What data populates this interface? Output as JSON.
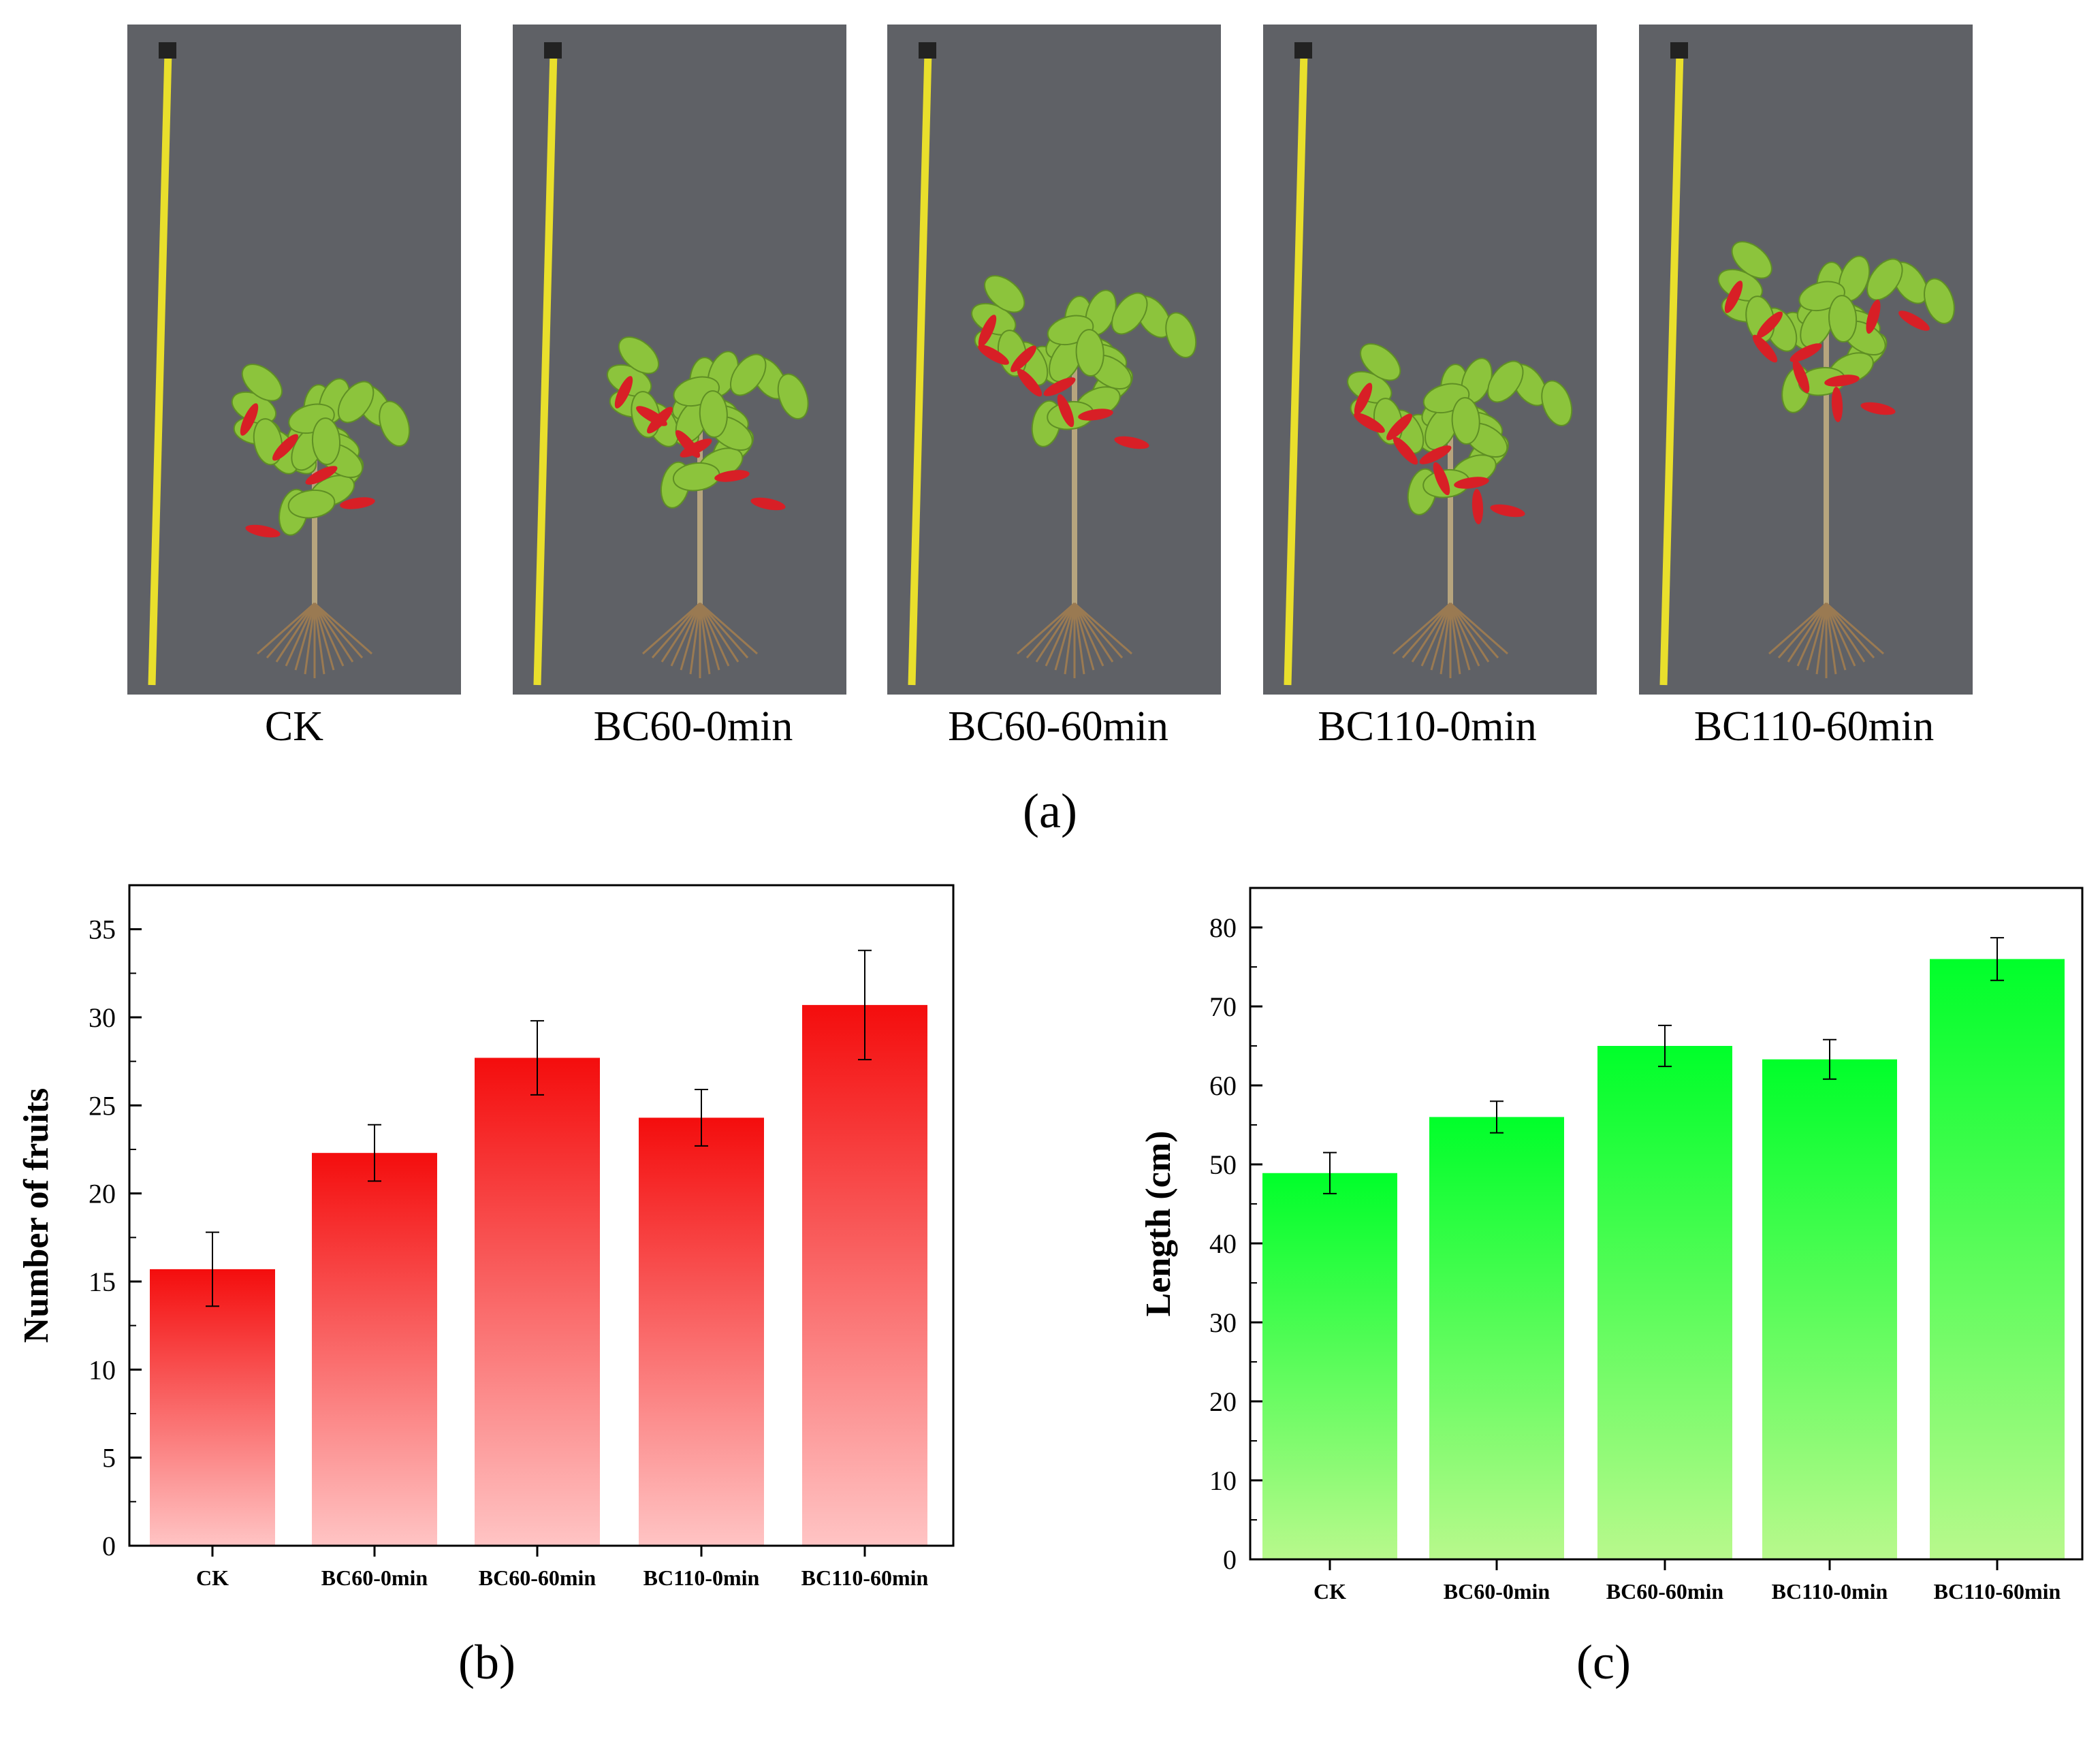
{
  "panel_labels": {
    "a": "(a)",
    "b": "(b)",
    "c": "(c)"
  },
  "photos": [
    {
      "label": "CK",
      "fruit_color": "#d81f26"
    },
    {
      "label": "BC60-0min",
      "fruit_color": "#d81f26"
    },
    {
      "label": "BC60-60min",
      "fruit_color": "#d81f26"
    },
    {
      "label": "BC110-0min",
      "fruit_color": "#d81f26"
    },
    {
      "label": "BC110-60min",
      "fruit_color": "#d81f26"
    }
  ],
  "colors": {
    "background_photo": "#5f6166",
    "tape": "#e9df2c",
    "leaf": "#8cc43c",
    "root": "#9a7a52",
    "red_bar_top": "#f40d0d",
    "red_bar_bottom": "#ffc4c4",
    "green_bar_top": "#00ff2a",
    "green_bar_bottom": "#b8f98c"
  },
  "chart_data": [
    {
      "id": "b",
      "type": "bar",
      "title": "",
      "xlabel": "",
      "ylabel": "Number of fruits",
      "categories": [
        "CK",
        "BC60-0min",
        "BC60-60min",
        "BC110-0min",
        "BC110-60min"
      ],
      "values": [
        15.7,
        22.3,
        27.7,
        24.3,
        30.7
      ],
      "errors": [
        2.1,
        1.6,
        2.1,
        1.6,
        3.1
      ],
      "ylim": [
        0,
        37.5
      ],
      "yticks": [
        0,
        5,
        10,
        15,
        20,
        25,
        30,
        35
      ],
      "gradient": "red"
    },
    {
      "id": "c",
      "type": "bar",
      "title": "",
      "xlabel": "",
      "ylabel": "Length (cm)",
      "categories": [
        "CK",
        "BC60-0min",
        "BC60-60min",
        "BC110-0min",
        "BC110-60min"
      ],
      "values": [
        48.9,
        56.0,
        65.0,
        63.3,
        76.0
      ],
      "errors": [
        2.6,
        2.0,
        2.6,
        2.5,
        2.7
      ],
      "ylim": [
        0,
        85
      ],
      "yticks": [
        0,
        10,
        20,
        30,
        40,
        50,
        60,
        70,
        80
      ],
      "gradient": "green"
    }
  ]
}
